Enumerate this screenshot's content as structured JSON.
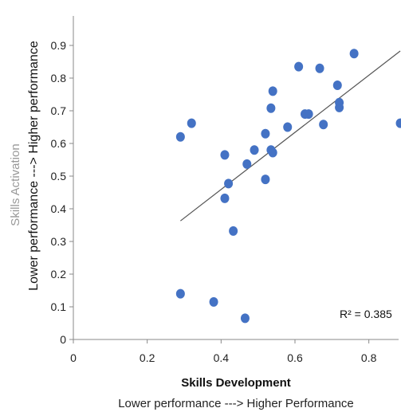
{
  "chart_data": {
    "type": "scatter",
    "xlabel": "Skills Development",
    "xlabel_sub": "Lower performance ---> Higher Performance",
    "ylabel": "Skills Activation",
    "ylabel_sub": "Lower performance ---> Higher performance",
    "xlim": [
      0,
      0.9
    ],
    "ylim": [
      0,
      1.0
    ],
    "x_ticks": [
      0,
      0.2,
      0.4,
      0.6,
      0.8
    ],
    "x_tick_labels": [
      "0",
      "0.2",
      "0.4",
      "0.6",
      "0.8"
    ],
    "y_ticks": [
      0,
      0.1,
      0.2,
      0.3,
      0.4,
      0.5,
      0.6,
      0.7,
      0.8,
      0.9
    ],
    "y_tick_labels": [
      "0",
      "0.1",
      "0.2",
      "0.3",
      "0.4",
      "0.5",
      "0.6",
      "0.7",
      "0.8",
      "0.9"
    ],
    "grid": false,
    "marker_color": "#4472c4",
    "trendline_color": "#555555",
    "annotation": "R² = 0.385",
    "trendline": {
      "x": [
        0.29,
        0.885
      ],
      "y": [
        0.363,
        0.883
      ]
    },
    "points": [
      {
        "x": 0.29,
        "y": 0.14
      },
      {
        "x": 0.38,
        "y": 0.115
      },
      {
        "x": 0.465,
        "y": 0.065
      },
      {
        "x": 0.29,
        "y": 0.62
      },
      {
        "x": 0.32,
        "y": 0.662
      },
      {
        "x": 0.41,
        "y": 0.565
      },
      {
        "x": 0.41,
        "y": 0.432
      },
      {
        "x": 0.42,
        "y": 0.477
      },
      {
        "x": 0.433,
        "y": 0.332
      },
      {
        "x": 0.47,
        "y": 0.537
      },
      {
        "x": 0.49,
        "y": 0.58
      },
      {
        "x": 0.52,
        "y": 0.49
      },
      {
        "x": 0.52,
        "y": 0.63
      },
      {
        "x": 0.535,
        "y": 0.58
      },
      {
        "x": 0.54,
        "y": 0.572
      },
      {
        "x": 0.535,
        "y": 0.708
      },
      {
        "x": 0.54,
        "y": 0.76
      },
      {
        "x": 0.58,
        "y": 0.65
      },
      {
        "x": 0.61,
        "y": 0.835
      },
      {
        "x": 0.627,
        "y": 0.69
      },
      {
        "x": 0.637,
        "y": 0.69
      },
      {
        "x": 0.667,
        "y": 0.83
      },
      {
        "x": 0.677,
        "y": 0.658
      },
      {
        "x": 0.715,
        "y": 0.778
      },
      {
        "x": 0.72,
        "y": 0.725
      },
      {
        "x": 0.72,
        "y": 0.71
      },
      {
        "x": 0.76,
        "y": 0.875
      },
      {
        "x": 0.885,
        "y": 0.662
      }
    ]
  }
}
